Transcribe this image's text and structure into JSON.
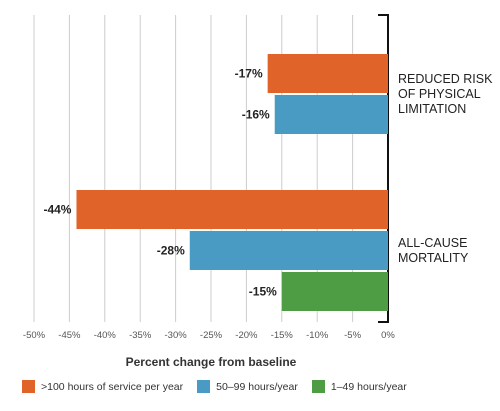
{
  "chart_data": {
    "type": "bar",
    "orientation": "horizontal",
    "xlabel": "Percent change from baseline",
    "xlim": [
      -50,
      0
    ],
    "xticks": [
      -50,
      -45,
      -40,
      -35,
      -30,
      -25,
      -20,
      -15,
      -10,
      -5,
      0
    ],
    "tick_suffix": "%",
    "grid": true,
    "legend_position": "bottom",
    "groups": [
      {
        "label_lines": [
          "REDUCED RISK",
          "OF PHYSICAL",
          "LIMITATION"
        ],
        "bars": [
          {
            "series": ">100 hours of service per year",
            "value": -17,
            "label": "-17%",
            "color": "#e0632a"
          },
          {
            "series": "50–99 hours/year",
            "value": -16,
            "label": "-16%",
            "color": "#4a9bc4"
          }
        ]
      },
      {
        "label_lines": [
          "ALL-CAUSE",
          "MORTALITY"
        ],
        "bars": [
          {
            "series": ">100 hours of service per year",
            "value": -44,
            "label": "-44%",
            "color": "#e0632a"
          },
          {
            "series": "50–99 hours/year",
            "value": -28,
            "label": "-28%",
            "color": "#4a9bc4"
          },
          {
            "series": "1–49 hours/year",
            "value": -15,
            "label": "-15%",
            "color": "#4e9d45"
          }
        ]
      }
    ],
    "legend": [
      {
        "name": ">100 hours of service per year",
        "color": "#e0632a"
      },
      {
        "name": "50–99 hours/year",
        "color": "#4a9bc4"
      },
      {
        "name": "1–49 hours/year",
        "color": "#4e9d45"
      }
    ]
  }
}
